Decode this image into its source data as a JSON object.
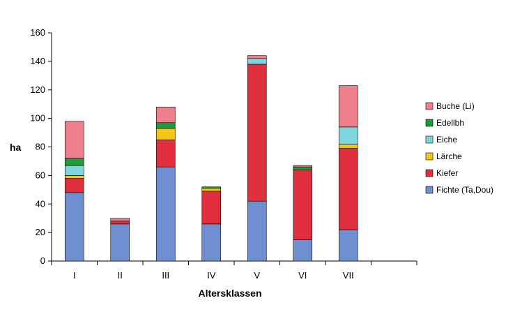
{
  "chart_data": {
    "type": "bar",
    "stacked": true,
    "title": "",
    "xlabel": "Altersklassen",
    "ylabel": "ha",
    "ylim": [
      0,
      160
    ],
    "yticks": [
      0,
      20,
      40,
      60,
      80,
      100,
      120,
      140,
      160
    ],
    "grid": false,
    "legend_position": "right",
    "categories": [
      "I",
      "II",
      "III",
      "IV",
      "V",
      "VI",
      "VII",
      ""
    ],
    "series": [
      {
        "name": "Fichte (Ta,Dou)",
        "color": "#6f8fd1",
        "values": [
          48,
          26,
          66,
          26,
          42,
          15,
          22,
          0
        ]
      },
      {
        "name": "Kiefer",
        "color": "#e03040",
        "values": [
          10,
          2,
          19,
          23,
          96,
          49,
          57,
          0
        ]
      },
      {
        "name": "Lärche",
        "color": "#f5c518",
        "values": [
          2,
          0,
          8,
          2,
          0,
          0,
          3,
          0
        ]
      },
      {
        "name": "Eiche",
        "color": "#7fd6dc",
        "values": [
          7,
          0,
          0,
          0,
          4,
          0,
          12,
          0
        ]
      },
      {
        "name": "Edellbh",
        "color": "#1f9a3c",
        "values": [
          5,
          0,
          4,
          1,
          0,
          2,
          0,
          0
        ]
      },
      {
        "name": "Buche (Li)",
        "color": "#ee7f8c",
        "values": [
          26,
          2,
          11,
          0,
          2,
          1,
          29,
          0
        ]
      }
    ]
  }
}
